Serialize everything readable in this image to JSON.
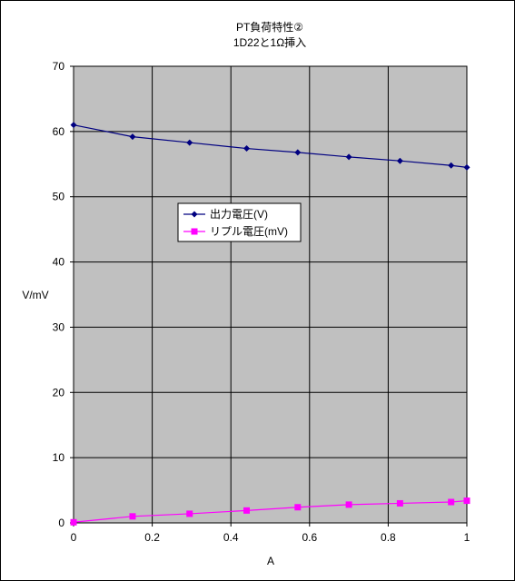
{
  "chart_data": {
    "type": "line",
    "title": "PT負荷特性②",
    "subtitle": "1D22と1Ω挿入",
    "xlabel": "A",
    "ylabel": "V/mV",
    "xlim": [
      0,
      1
    ],
    "ylim": [
      0,
      70
    ],
    "x_ticks": [
      0,
      0.2,
      0.4,
      0.6,
      0.8,
      1
    ],
    "x_tick_labels": [
      "0",
      "0.2",
      "0.4",
      "0.6",
      "0.8",
      "1"
    ],
    "y_ticks": [
      0,
      10,
      20,
      30,
      40,
      50,
      60,
      70
    ],
    "y_tick_labels": [
      "0",
      "10",
      "20",
      "30",
      "40",
      "50",
      "60",
      "70"
    ],
    "grid": true,
    "plot_background": "#c0c0c0",
    "legend_position": "center-left",
    "series": [
      {
        "name": "出力電圧(V)",
        "color": "#000080",
        "marker": "diamond",
        "x": [
          0,
          0.15,
          0.295,
          0.44,
          0.57,
          0.7,
          0.83,
          0.96,
          1.0
        ],
        "y": [
          61.0,
          59.2,
          58.3,
          57.4,
          56.8,
          56.1,
          55.5,
          54.8,
          54.5
        ]
      },
      {
        "name": "リプル電圧(mV)",
        "color": "#ff00ff",
        "marker": "square",
        "x": [
          0,
          0.15,
          0.295,
          0.44,
          0.57,
          0.7,
          0.83,
          0.96,
          1.0
        ],
        "y": [
          0.1,
          1.0,
          1.4,
          1.9,
          2.4,
          2.8,
          3.0,
          3.2,
          3.4
        ]
      }
    ]
  }
}
